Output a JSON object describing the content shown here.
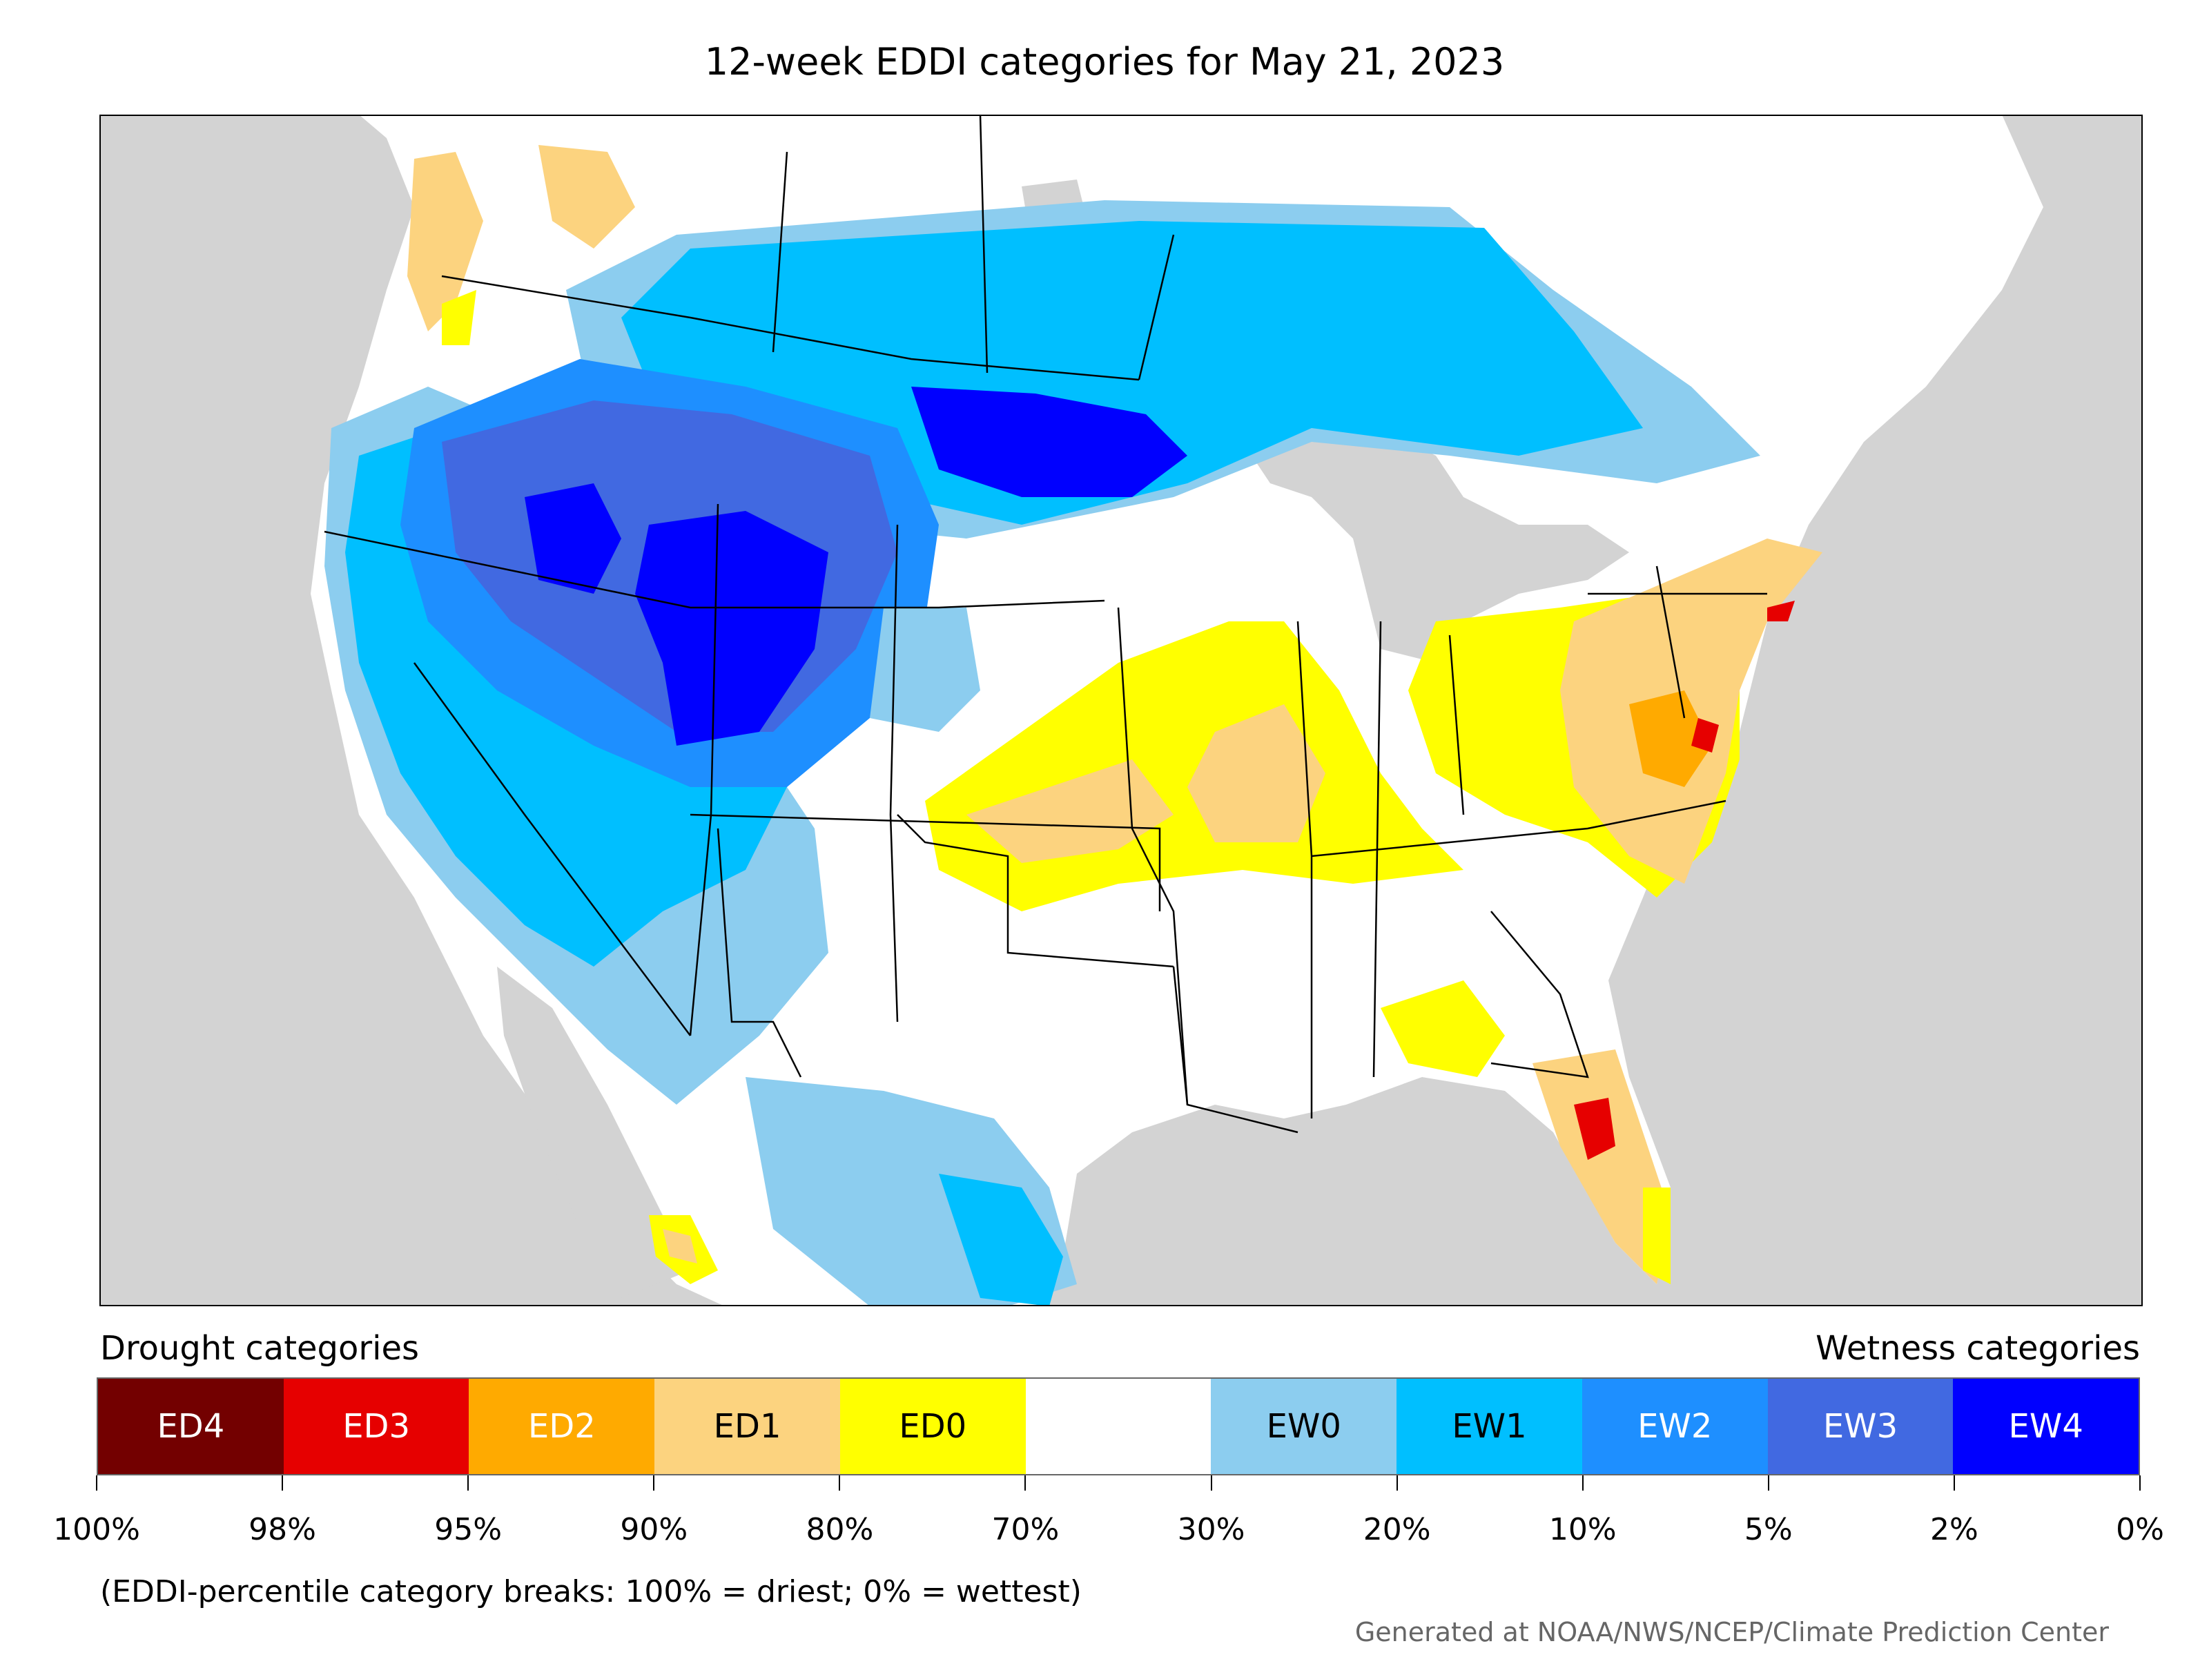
{
  "title": "12-week EDDI categories for May 21, 2023",
  "drought_label": "Drought categories",
  "wetness_label": "Wetness categories",
  "legend": {
    "categories": [
      {
        "label": "ED4",
        "color": "#730000",
        "text_color": "#ffffff"
      },
      {
        "label": "ED3",
        "color": "#e60000",
        "text_color": "#ffffff"
      },
      {
        "label": "ED2",
        "color": "#ffaa00",
        "text_color": "#ffffff"
      },
      {
        "label": "ED1",
        "color": "#fcd37f",
        "text_color": "#000000"
      },
      {
        "label": "ED0",
        "color": "#ffff00",
        "text_color": "#000000"
      },
      {
        "label": "",
        "color": "#ffffff",
        "text_color": "#000000"
      },
      {
        "label": "EW0",
        "color": "#8ccdef",
        "text_color": "#000000"
      },
      {
        "label": "EW1",
        "color": "#00bfff",
        "text_color": "#000000"
      },
      {
        "label": "EW2",
        "color": "#1e8fff",
        "text_color": "#ffffff"
      },
      {
        "label": "EW3",
        "color": "#4169e1",
        "text_color": "#ffffff"
      },
      {
        "label": "EW4",
        "color": "#0000ff",
        "text_color": "#ffffff"
      }
    ],
    "ticks": [
      "100%",
      "98%",
      "95%",
      "90%",
      "80%",
      "70%",
      "30%",
      "20%",
      "10%",
      "5%",
      "2%",
      "0%"
    ]
  },
  "note": "(EDDI-percentile category breaks: 100% = driest; 0% = wettest)",
  "credit": "Generated at NOAA/NWS/NCEP/Climate Prediction Center"
}
